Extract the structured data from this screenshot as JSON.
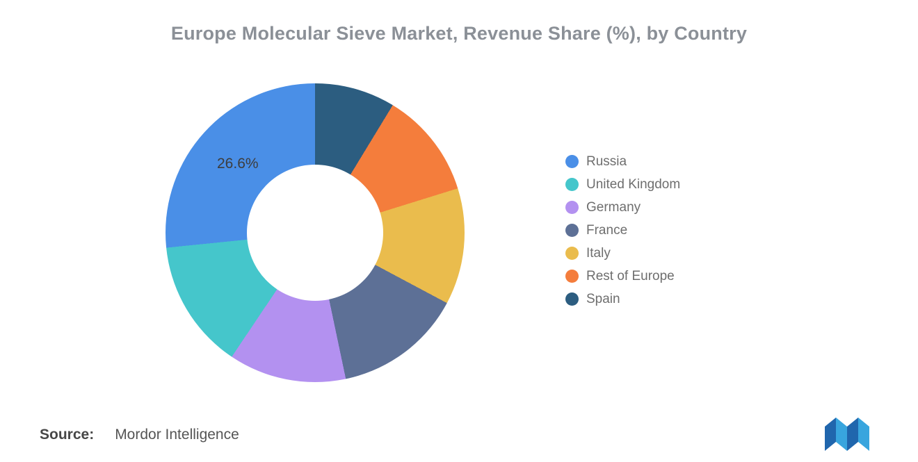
{
  "chart_data": {
    "type": "pie",
    "donut": true,
    "title": "Europe Molecular Sieve Market, Revenue Share (%), by Country",
    "legend_position": "right",
    "order_note": "slices run counterclockwise from 12 o'clock in legend order (clockwise order is reversed legend order)",
    "series": [
      {
        "name": "Russia",
        "value": 26.6,
        "color": "#4a8fe7"
      },
      {
        "name": "United Kingdom",
        "value": 14.0,
        "color": "#45c6cb"
      },
      {
        "name": "Germany",
        "value": 12.7,
        "color": "#b391f0"
      },
      {
        "name": "France",
        "value": 13.9,
        "color": "#5d7096"
      },
      {
        "name": "Italy",
        "value": 12.6,
        "color": "#eabc4d"
      },
      {
        "name": "Rest of Europe",
        "value": 11.5,
        "color": "#f47d3c"
      },
      {
        "name": "Spain",
        "value": 8.7,
        "color": "#2c5d80"
      }
    ],
    "data_labels": [
      {
        "series": "Russia",
        "text": "26.6%"
      }
    ]
  },
  "footer": {
    "source_label": "Source:",
    "source_value": "Mordor Intelligence"
  },
  "logo": {
    "name": "mordor-intelligence-logo",
    "color_light": "#38a5de",
    "color_dark": "#2066ad"
  }
}
